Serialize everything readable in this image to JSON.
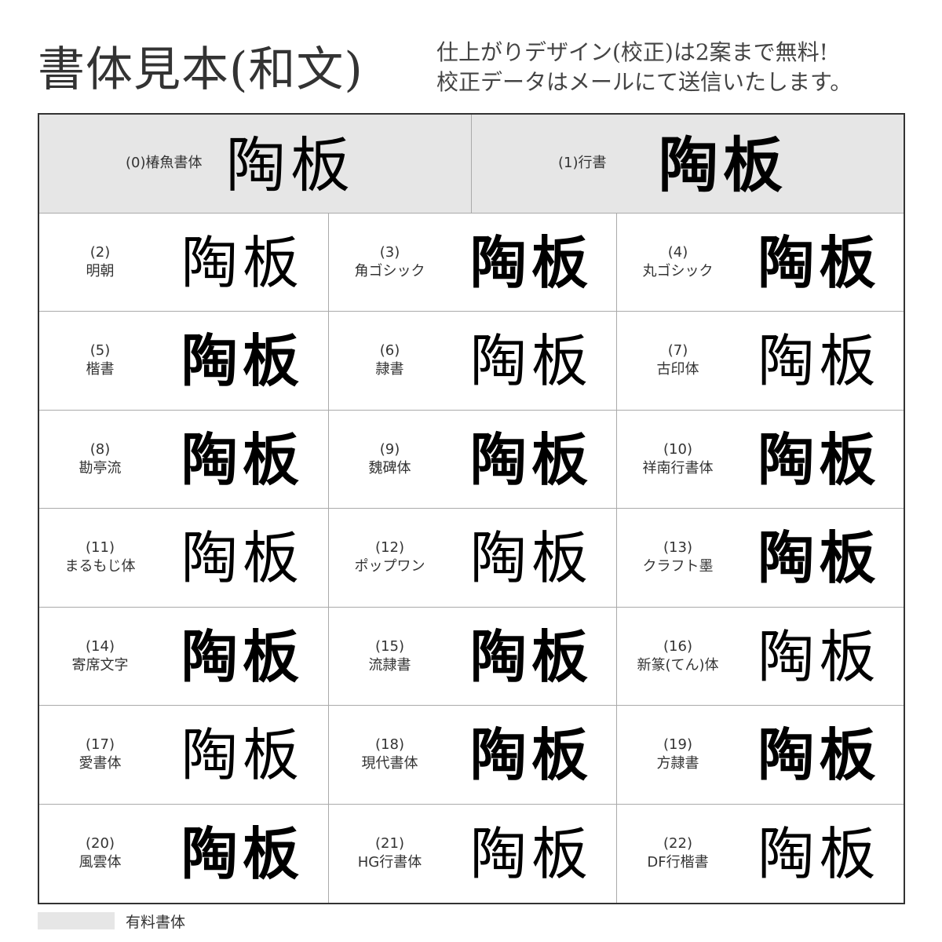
{
  "title": "書体見本(和文)",
  "note": [
    "仕上がりデザイン(校正)は2案まで無料!",
    "校正データはメールにて送信いたします。"
  ],
  "sample_text": "陶板",
  "top_fonts": [
    {
      "num": "(0)",
      "name": "椿魚書体"
    },
    {
      "num": "(1)",
      "name": "行書"
    }
  ],
  "fonts": [
    {
      "num": "(2)",
      "name": "明朝"
    },
    {
      "num": "(3)",
      "name": "角ゴシック"
    },
    {
      "num": "(4)",
      "name": "丸ゴシック"
    },
    {
      "num": "(5)",
      "name": "楷書"
    },
    {
      "num": "(6)",
      "name": "隷書"
    },
    {
      "num": "(7)",
      "name": "古印体"
    },
    {
      "num": "(8)",
      "name": "勘亭流"
    },
    {
      "num": "(9)",
      "name": "魏碑体"
    },
    {
      "num": "(10)",
      "name": "祥南行書体"
    },
    {
      "num": "(11)",
      "name": "まるもじ体"
    },
    {
      "num": "(12)",
      "name": "ポップワン"
    },
    {
      "num": "(13)",
      "name": "クラフト墨"
    },
    {
      "num": "(14)",
      "name": "寄席文字"
    },
    {
      "num": "(15)",
      "name": "流隷書"
    },
    {
      "num": "(16)",
      "name": "新篆(てん)体"
    },
    {
      "num": "(17)",
      "name": "愛書体"
    },
    {
      "num": "(18)",
      "name": "現代書体"
    },
    {
      "num": "(19)",
      "name": "方隷書"
    },
    {
      "num": "(20)",
      "name": "風雲体"
    },
    {
      "num": "(21)",
      "name": "HG行書体"
    },
    {
      "num": "(22)",
      "name": "DF行楷書"
    }
  ],
  "legend": {
    "label": "有料書体",
    "swatch_color": "#e6e6e6"
  }
}
